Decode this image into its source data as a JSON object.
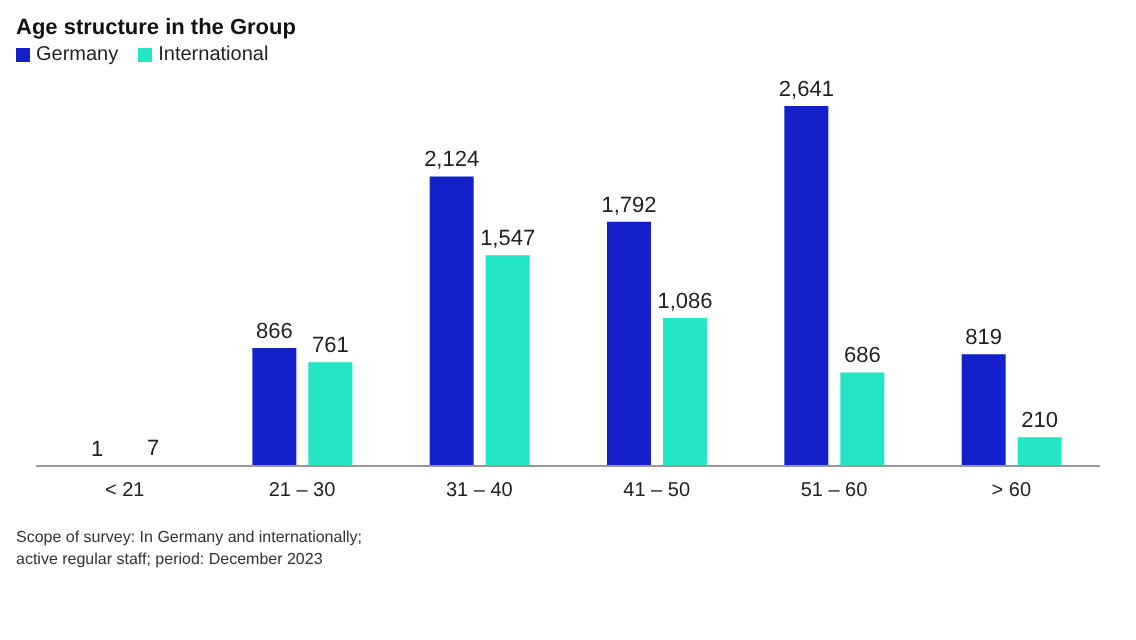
{
  "chart_data": {
    "type": "bar",
    "title": "Age structure in the Group",
    "categories": [
      "< 21",
      "21 – 30",
      "31 – 40",
      "41 – 50",
      "51 – 60",
      "> 60"
    ],
    "series": [
      {
        "name": "Germany",
        "color": "#1420c8",
        "values": [
          1,
          866,
          2124,
          1792,
          2641,
          819
        ],
        "value_labels": [
          "1",
          "866",
          "2,124",
          "1,792",
          "2,641",
          "819"
        ]
      },
      {
        "name": "International",
        "color": "#22e6c4",
        "values": [
          7,
          761,
          1547,
          1086,
          686,
          210
        ],
        "value_labels": [
          "7",
          "761",
          "1,547",
          "1,086",
          "686",
          "210"
        ]
      }
    ],
    "legend": "top left",
    "grid": false,
    "annotations": [
      "Scope of survey: In Germany and internationally;",
      "active regular staff; period: December 2023"
    ]
  }
}
